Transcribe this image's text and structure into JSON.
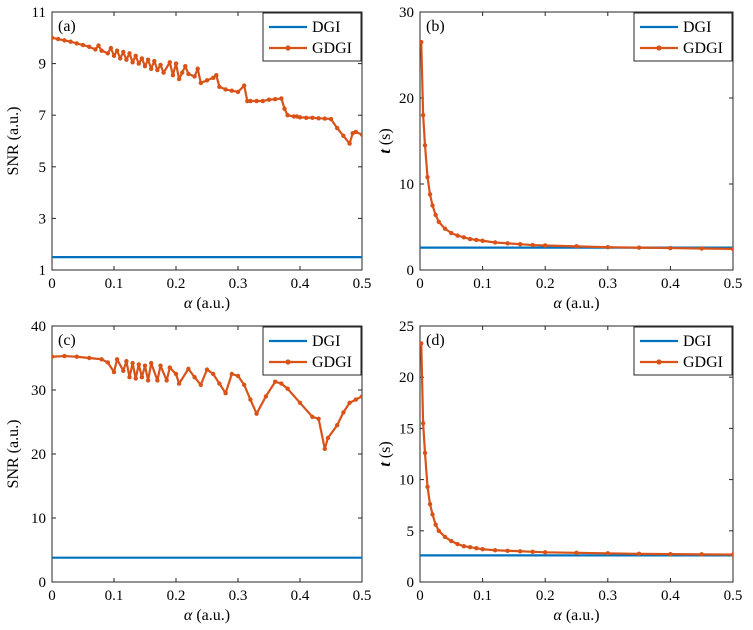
{
  "chart_data": [
    {
      "id": "a",
      "type": "line",
      "panel_label": "(a)",
      "xlabel": "α (a.u.)",
      "ylabel": "SNR (a.u.)",
      "xlim": [
        0,
        0.5
      ],
      "ylim": [
        1,
        11
      ],
      "xticks": [
        0,
        0.1,
        0.2,
        0.3,
        0.4,
        0.5
      ],
      "xtick_labels": [
        "0",
        "0.1",
        "0.2",
        "0.3",
        "0.4",
        "0.5"
      ],
      "yticks": [
        1,
        3,
        5,
        7,
        9,
        11
      ],
      "ytick_labels": [
        "1",
        "3",
        "5",
        "7",
        "9",
        "11"
      ],
      "ylabel_bold": "",
      "legend_position": "top-right",
      "series": [
        {
          "name": "DGI",
          "color": "#0072BD",
          "marker": "none",
          "x": [
            0,
            0.5
          ],
          "y": [
            1.5,
            1.5
          ]
        },
        {
          "name": "GDGI",
          "color": "#D95319",
          "marker": "dot",
          "x": [
            0,
            0.01,
            0.02,
            0.03,
            0.04,
            0.05,
            0.06,
            0.07,
            0.075,
            0.08,
            0.09,
            0.095,
            0.1,
            0.105,
            0.11,
            0.115,
            0.12,
            0.125,
            0.13,
            0.135,
            0.14,
            0.145,
            0.15,
            0.155,
            0.16,
            0.165,
            0.17,
            0.175,
            0.18,
            0.19,
            0.195,
            0.2,
            0.205,
            0.21,
            0.215,
            0.22,
            0.23,
            0.235,
            0.24,
            0.25,
            0.26,
            0.265,
            0.27,
            0.28,
            0.29,
            0.3,
            0.31,
            0.315,
            0.32,
            0.33,
            0.34,
            0.35,
            0.36,
            0.37,
            0.375,
            0.38,
            0.39,
            0.395,
            0.4,
            0.41,
            0.42,
            0.43,
            0.44,
            0.45,
            0.46,
            0.47,
            0.48,
            0.485,
            0.49,
            0.5
          ],
          "y": [
            10.0,
            9.95,
            9.9,
            9.85,
            9.78,
            9.72,
            9.65,
            9.55,
            9.7,
            9.5,
            9.4,
            9.6,
            9.3,
            9.5,
            9.2,
            9.45,
            9.15,
            9.4,
            9.05,
            9.3,
            9.0,
            9.2,
            8.9,
            9.15,
            8.8,
            9.1,
            8.75,
            8.95,
            8.65,
            9.05,
            8.55,
            9.0,
            8.4,
            8.65,
            8.9,
            8.6,
            8.5,
            8.8,
            8.25,
            8.35,
            8.45,
            8.55,
            8.1,
            8.0,
            7.95,
            7.9,
            8.15,
            7.55,
            7.55,
            7.55,
            7.55,
            7.6,
            7.62,
            7.65,
            7.25,
            7.0,
            6.95,
            6.95,
            6.92,
            6.9,
            6.9,
            6.88,
            6.87,
            6.85,
            6.5,
            6.2,
            5.9,
            6.3,
            6.35,
            6.25
          ]
        }
      ]
    },
    {
      "id": "b",
      "type": "line",
      "panel_label": "(b)",
      "xlabel": "α (a.u.)",
      "ylabel": "t (s)",
      "xlim": [
        0,
        0.5
      ],
      "ylim": [
        0,
        30
      ],
      "xticks": [
        0,
        0.1,
        0.2,
        0.3,
        0.4,
        0.5
      ],
      "xtick_labels": [
        "0",
        "0.1",
        "0.2",
        "0.3",
        "0.4",
        "0.5"
      ],
      "yticks": [
        0,
        10,
        20,
        30
      ],
      "ytick_labels": [
        "0",
        "10",
        "20",
        "30"
      ],
      "legend_position": "top-right",
      "series": [
        {
          "name": "DGI",
          "color": "#0072BD",
          "marker": "none",
          "x": [
            0,
            0.5
          ],
          "y": [
            2.6,
            2.6
          ]
        },
        {
          "name": "GDGI",
          "color": "#D95319",
          "marker": "dot",
          "x": [
            0.002,
            0.005,
            0.008,
            0.012,
            0.016,
            0.02,
            0.025,
            0.03,
            0.04,
            0.05,
            0.06,
            0.07,
            0.08,
            0.09,
            0.1,
            0.12,
            0.14,
            0.16,
            0.18,
            0.2,
            0.25,
            0.3,
            0.35,
            0.4,
            0.45,
            0.5
          ],
          "y": [
            26.5,
            18.0,
            14.5,
            10.8,
            8.8,
            7.5,
            6.4,
            5.6,
            4.8,
            4.3,
            4.0,
            3.8,
            3.6,
            3.5,
            3.4,
            3.2,
            3.1,
            3.0,
            2.9,
            2.85,
            2.75,
            2.65,
            2.6,
            2.55,
            2.5,
            2.45
          ]
        }
      ]
    },
    {
      "id": "c",
      "type": "line",
      "panel_label": "(c)",
      "xlabel": "α (a.u.)",
      "ylabel": "SNR (a.u.)",
      "xlim": [
        0,
        0.5
      ],
      "ylim": [
        0,
        40
      ],
      "xticks": [
        0,
        0.1,
        0.2,
        0.3,
        0.4,
        0.5
      ],
      "xtick_labels": [
        "0",
        "0.1",
        "0.2",
        "0.3",
        "0.4",
        "0.5"
      ],
      "yticks": [
        0,
        10,
        20,
        30,
        40
      ],
      "ytick_labels": [
        "0",
        "10",
        "20",
        "30",
        "40"
      ],
      "legend_position": "top-right",
      "series": [
        {
          "name": "DGI",
          "color": "#0072BD",
          "marker": "none",
          "x": [
            0,
            0.5
          ],
          "y": [
            3.8,
            3.8
          ]
        },
        {
          "name": "GDGI",
          "color": "#D95319",
          "marker": "dot",
          "x": [
            0,
            0.02,
            0.04,
            0.06,
            0.08,
            0.09,
            0.1,
            0.105,
            0.115,
            0.12,
            0.125,
            0.13,
            0.135,
            0.14,
            0.145,
            0.15,
            0.155,
            0.16,
            0.17,
            0.175,
            0.185,
            0.19,
            0.2,
            0.205,
            0.22,
            0.23,
            0.24,
            0.25,
            0.26,
            0.27,
            0.28,
            0.29,
            0.3,
            0.31,
            0.32,
            0.33,
            0.345,
            0.36,
            0.37,
            0.38,
            0.4,
            0.42,
            0.43,
            0.44,
            0.445,
            0.46,
            0.47,
            0.48,
            0.49,
            0.5
          ],
          "y": [
            35.2,
            35.3,
            35.2,
            35.0,
            34.8,
            34.3,
            32.8,
            34.8,
            33.0,
            34.5,
            32.0,
            34.2,
            31.8,
            34.0,
            32.0,
            33.8,
            31.5,
            34.2,
            31.5,
            33.8,
            31.5,
            33.5,
            32.5,
            31.0,
            33.3,
            32.0,
            30.8,
            33.2,
            32.5,
            31.0,
            29.5,
            32.5,
            32.2,
            30.8,
            28.5,
            26.3,
            29.0,
            31.3,
            31.0,
            30.2,
            28.0,
            25.8,
            25.5,
            20.8,
            22.5,
            24.5,
            26.5,
            28.0,
            28.5,
            29.0
          ]
        }
      ]
    },
    {
      "id": "d",
      "type": "line",
      "panel_label": "(d)",
      "xlabel": "α (a.u.)",
      "ylabel": "t (s)",
      "xlim": [
        0,
        0.5
      ],
      "ylim": [
        0,
        25
      ],
      "xticks": [
        0,
        0.1,
        0.2,
        0.3,
        0.4,
        0.5
      ],
      "xtick_labels": [
        "0",
        "0.1",
        "0.2",
        "0.3",
        "0.4",
        "0.5"
      ],
      "yticks": [
        0,
        5,
        10,
        15,
        20,
        25
      ],
      "ytick_labels": [
        "0",
        "5",
        "10",
        "15",
        "20",
        "25"
      ],
      "legend_position": "top-right",
      "series": [
        {
          "name": "DGI",
          "color": "#0072BD",
          "marker": "none",
          "x": [
            0,
            0.5
          ],
          "y": [
            2.6,
            2.6
          ]
        },
        {
          "name": "GDGI",
          "color": "#D95319",
          "marker": "dot",
          "x": [
            0.002,
            0.005,
            0.008,
            0.012,
            0.016,
            0.02,
            0.025,
            0.03,
            0.04,
            0.05,
            0.06,
            0.07,
            0.08,
            0.09,
            0.1,
            0.12,
            0.14,
            0.16,
            0.18,
            0.2,
            0.25,
            0.3,
            0.35,
            0.4,
            0.45,
            0.5
          ],
          "y": [
            23.3,
            15.5,
            12.6,
            9.3,
            7.6,
            6.6,
            5.6,
            5.0,
            4.4,
            4.0,
            3.7,
            3.5,
            3.4,
            3.3,
            3.2,
            3.1,
            3.05,
            3.0,
            2.95,
            2.9,
            2.85,
            2.8,
            2.75,
            2.72,
            2.7,
            2.68
          ]
        }
      ]
    }
  ]
}
